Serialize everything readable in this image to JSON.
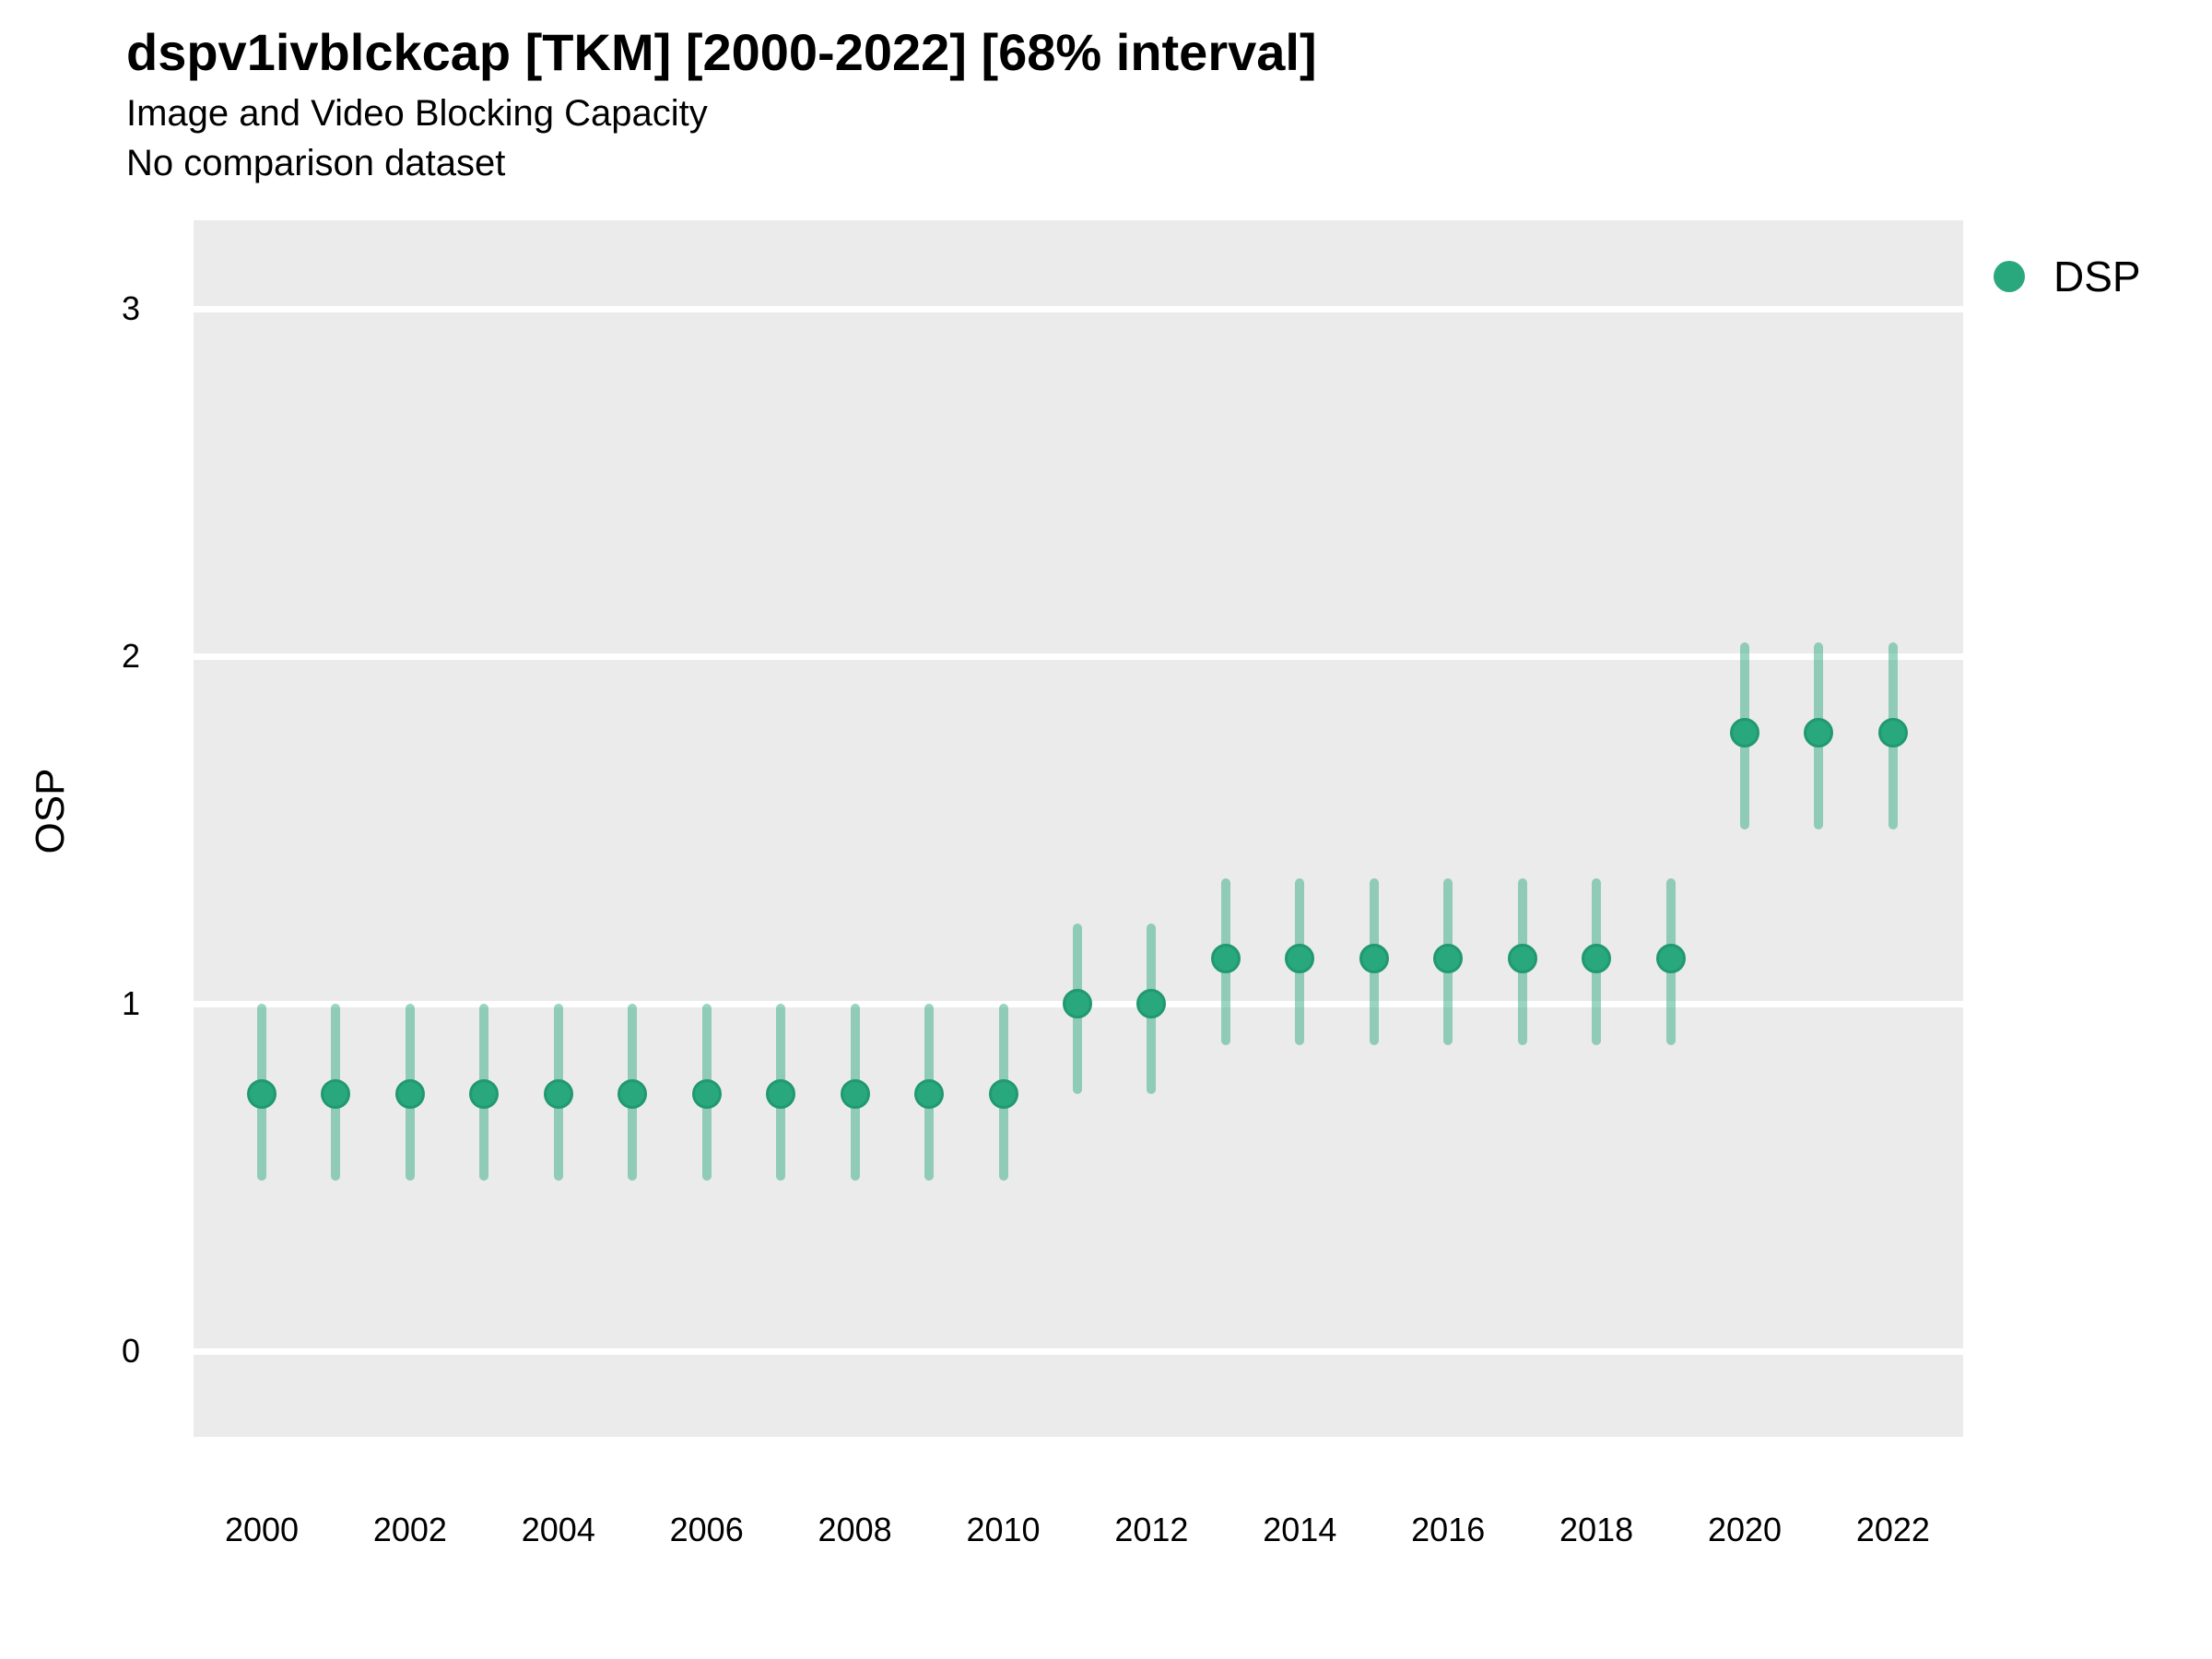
{
  "header": {
    "title": "dspv1ivblckcap [TKM] [2000-2022] [68% interval]",
    "subtitle": "Image and Video Blocking Capacity",
    "note": "No comparison dataset"
  },
  "legend": {
    "position": "right-top",
    "items": [
      {
        "label": "DSP",
        "color": "#29a87d"
      }
    ]
  },
  "colors": {
    "point_fill": "#29a87d",
    "point_border": "#21996f",
    "range_bar": "rgba(41,168,125,0.48)",
    "panel_bg": "#ebebeb",
    "gridline": "#ffffff",
    "text": "#000000"
  },
  "chart_data": {
    "type": "pointrange",
    "title": "dspv1ivblckcap [TKM] [2000-2022] [68% interval]",
    "subtitle": "Image and Video Blocking Capacity",
    "annotation": "No comparison dataset",
    "xlabel": "",
    "ylabel": "OSP",
    "interval_level": "68%",
    "grid": "horizontal-major-only",
    "legend_position": "right-top",
    "xticks": [
      2000,
      2002,
      2004,
      2006,
      2008,
      2010,
      2012,
      2014,
      2016,
      2018,
      2020,
      2022
    ],
    "yticks": [
      0,
      1,
      2,
      3
    ],
    "xlim": [
      1999.1,
      2022.9
    ],
    "ylim": [
      -0.25,
      3.25
    ],
    "series": [
      {
        "name": "DSP",
        "points": [
          {
            "x": 2000,
            "y": 0.74,
            "lo": 0.49,
            "hi": 1.0
          },
          {
            "x": 2001,
            "y": 0.74,
            "lo": 0.49,
            "hi": 1.0
          },
          {
            "x": 2002,
            "y": 0.74,
            "lo": 0.49,
            "hi": 1.0
          },
          {
            "x": 2003,
            "y": 0.74,
            "lo": 0.49,
            "hi": 1.0
          },
          {
            "x": 2004,
            "y": 0.74,
            "lo": 0.49,
            "hi": 1.0
          },
          {
            "x": 2005,
            "y": 0.74,
            "lo": 0.49,
            "hi": 1.0
          },
          {
            "x": 2006,
            "y": 0.74,
            "lo": 0.49,
            "hi": 1.0
          },
          {
            "x": 2007,
            "y": 0.74,
            "lo": 0.49,
            "hi": 1.0
          },
          {
            "x": 2008,
            "y": 0.74,
            "lo": 0.49,
            "hi": 1.0
          },
          {
            "x": 2009,
            "y": 0.74,
            "lo": 0.49,
            "hi": 1.0
          },
          {
            "x": 2010,
            "y": 0.74,
            "lo": 0.49,
            "hi": 1.0
          },
          {
            "x": 2011,
            "y": 1.0,
            "lo": 0.74,
            "hi": 1.23
          },
          {
            "x": 2012,
            "y": 1.0,
            "lo": 0.74,
            "hi": 1.23
          },
          {
            "x": 2013,
            "y": 1.13,
            "lo": 0.88,
            "hi": 1.36
          },
          {
            "x": 2014,
            "y": 1.13,
            "lo": 0.88,
            "hi": 1.36
          },
          {
            "x": 2015,
            "y": 1.13,
            "lo": 0.88,
            "hi": 1.36
          },
          {
            "x": 2016,
            "y": 1.13,
            "lo": 0.88,
            "hi": 1.36
          },
          {
            "x": 2017,
            "y": 1.13,
            "lo": 0.88,
            "hi": 1.36
          },
          {
            "x": 2018,
            "y": 1.13,
            "lo": 0.88,
            "hi": 1.36
          },
          {
            "x": 2019,
            "y": 1.13,
            "lo": 0.88,
            "hi": 1.36
          },
          {
            "x": 2020,
            "y": 1.78,
            "lo": 1.5,
            "hi": 2.04
          },
          {
            "x": 2021,
            "y": 1.78,
            "lo": 1.5,
            "hi": 2.04
          },
          {
            "x": 2022,
            "y": 1.78,
            "lo": 1.5,
            "hi": 2.04
          }
        ]
      }
    ]
  }
}
